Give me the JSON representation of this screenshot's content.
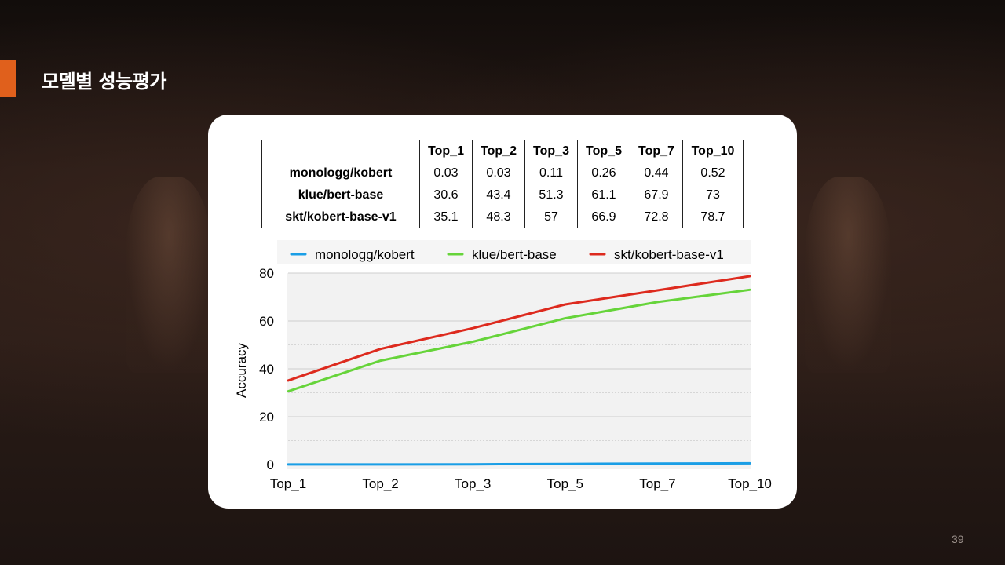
{
  "slide": {
    "title": "모델별 성능평가",
    "page_number": "39",
    "accent_color": "#e0601c"
  },
  "table": {
    "columns": [
      "Top_1",
      "Top_2",
      "Top_3",
      "Top_5",
      "Top_7",
      "Top_10"
    ],
    "rows": [
      {
        "model": "monologg/kobert",
        "values": [
          "0.03",
          "0.03",
          "0.11",
          "0.26",
          "0.44",
          "0.52"
        ]
      },
      {
        "model": "klue/bert-base",
        "values": [
          "30.6",
          "43.4",
          "51.3",
          "61.1",
          "67.9",
          "73"
        ]
      },
      {
        "model": "skt/kobert-base-v1",
        "values": [
          "35.1",
          "48.3",
          "57",
          "66.9",
          "72.8",
          "78.7"
        ]
      }
    ]
  },
  "chart_data": {
    "type": "line",
    "categories": [
      "Top_1",
      "Top_2",
      "Top_3",
      "Top_5",
      "Top_7",
      "Top_10"
    ],
    "series": [
      {
        "name": "monologg/kobert",
        "color": "#1a9ee6",
        "values": [
          0.03,
          0.03,
          0.11,
          0.26,
          0.44,
          0.52
        ]
      },
      {
        "name": "klue/bert-base",
        "color": "#66d43a",
        "values": [
          30.6,
          43.4,
          51.3,
          61.1,
          67.9,
          73
        ]
      },
      {
        "name": "skt/kobert-base-v1",
        "color": "#dd2a1e",
        "values": [
          35.1,
          48.3,
          57,
          66.9,
          72.8,
          78.7
        ]
      }
    ],
    "title": "",
    "xlabel": "",
    "ylabel": "Accuracy",
    "ylim": [
      0,
      80
    ],
    "yticks": [
      "0",
      "20",
      "40",
      "60",
      "80"
    ],
    "grid": true,
    "legend": "top"
  }
}
